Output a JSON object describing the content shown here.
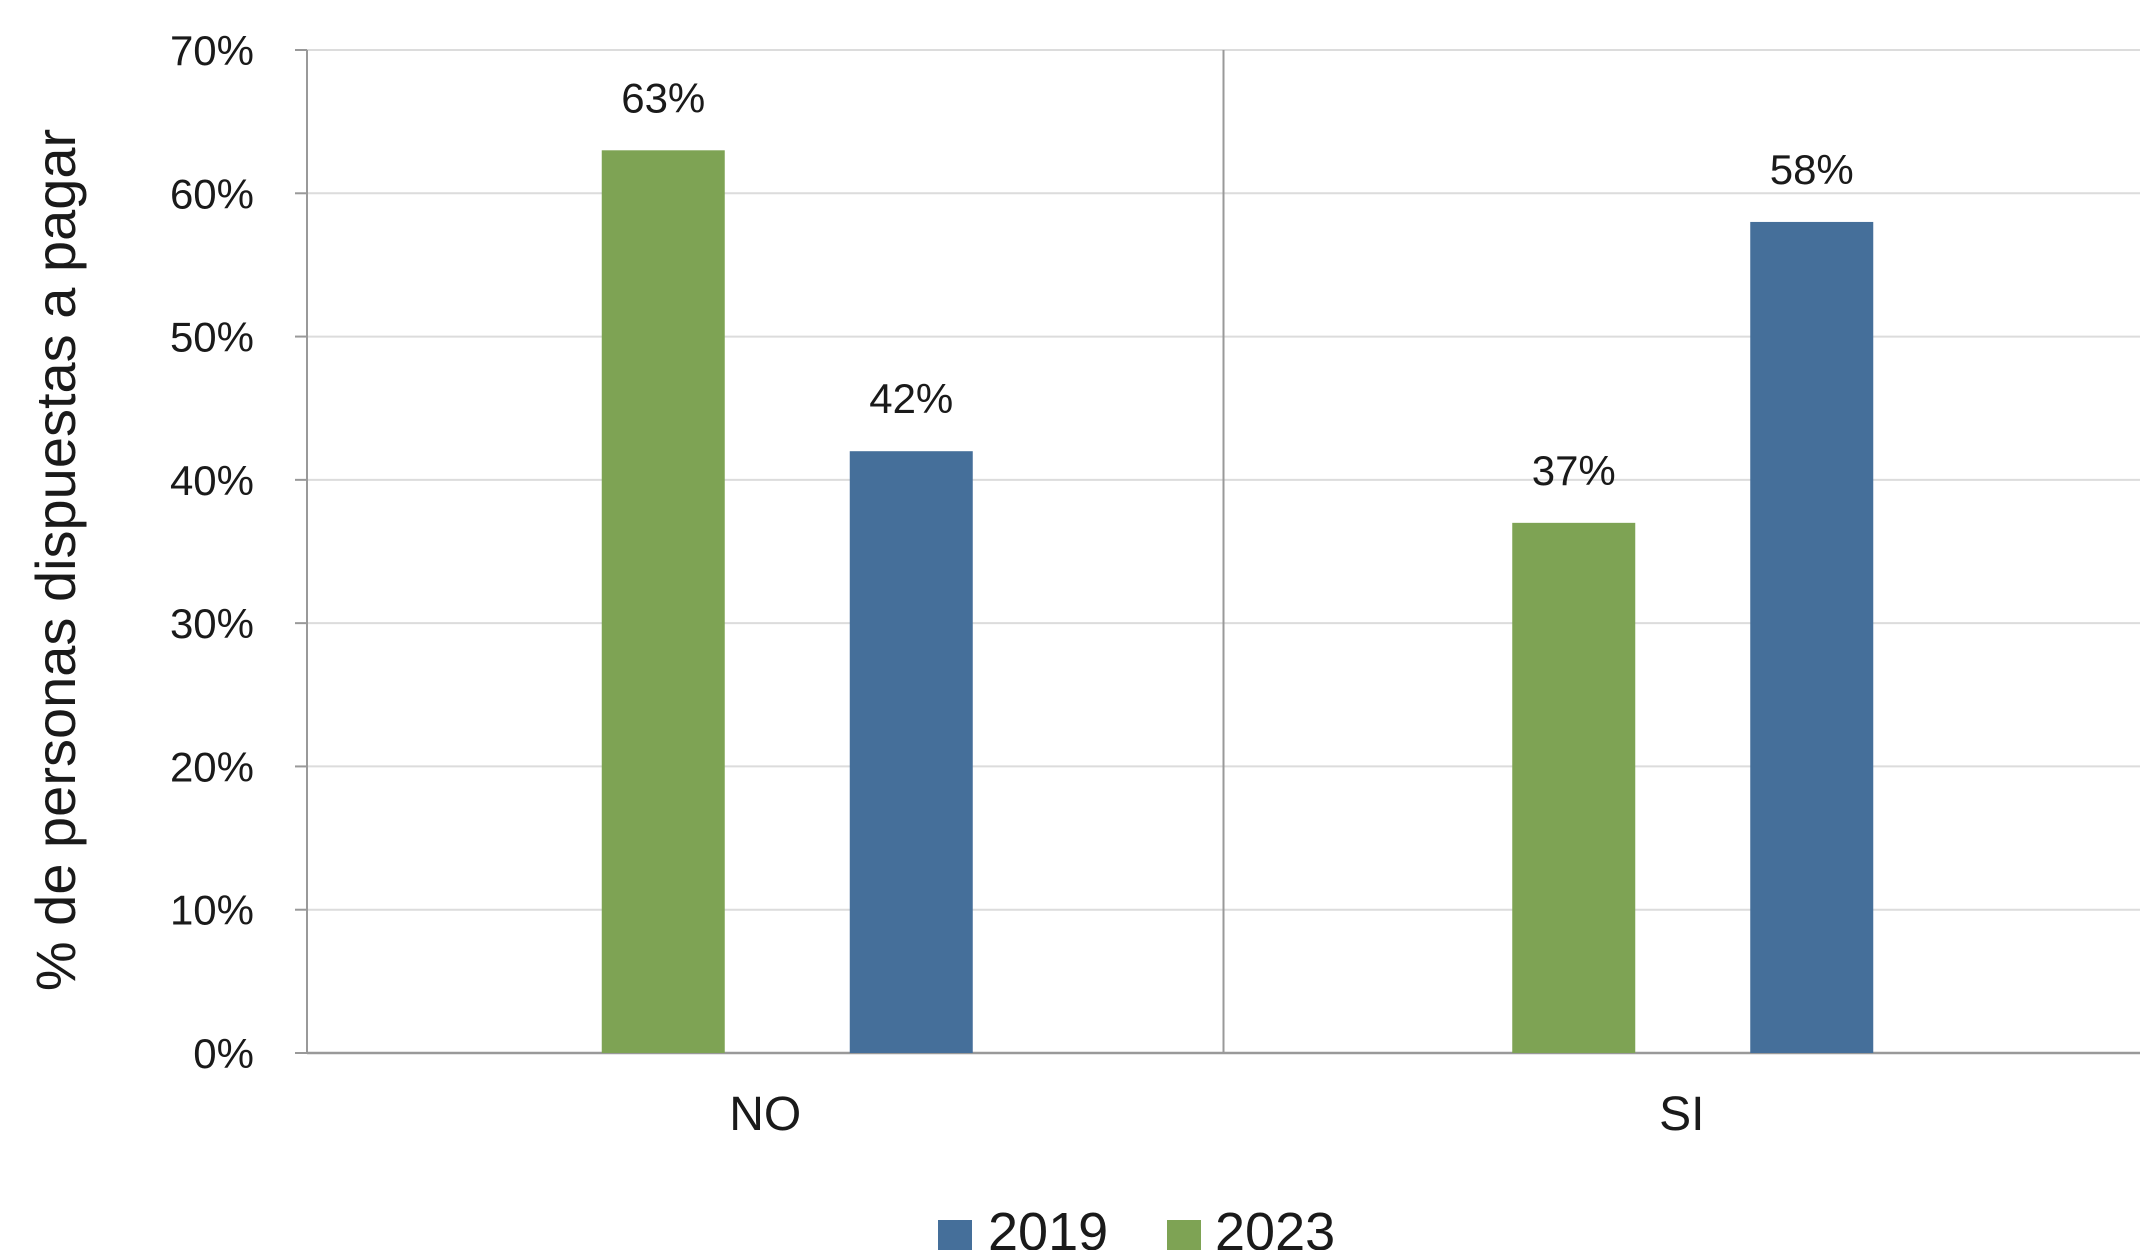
{
  "chart_data": {
    "type": "bar",
    "categories": [
      "NO",
      "SI"
    ],
    "series": [
      {
        "name": "2019",
        "values": [
          42,
          58
        ],
        "labels": [
          "42%",
          "58%"
        ],
        "color": "#456f9a"
      },
      {
        "name": "2023",
        "values": [
          63,
          37
        ],
        "labels": [
          "63%",
          "37%"
        ],
        "color": "#7ea354"
      }
    ],
    "draw_order": [
      "2023",
      "2019"
    ],
    "ylabel": "% de personas dispuestas a pagar",
    "xlabel": "",
    "ylim": [
      0,
      70
    ],
    "yticks": [
      0,
      10,
      20,
      30,
      40,
      50,
      60,
      70
    ],
    "ytick_labels": [
      "0%",
      "10%",
      "20%",
      "30%",
      "40%",
      "50%",
      "60%",
      "70%"
    ],
    "grid": true,
    "legend": "bottom-center",
    "legend_order": [
      "2019",
      "2023"
    ]
  }
}
